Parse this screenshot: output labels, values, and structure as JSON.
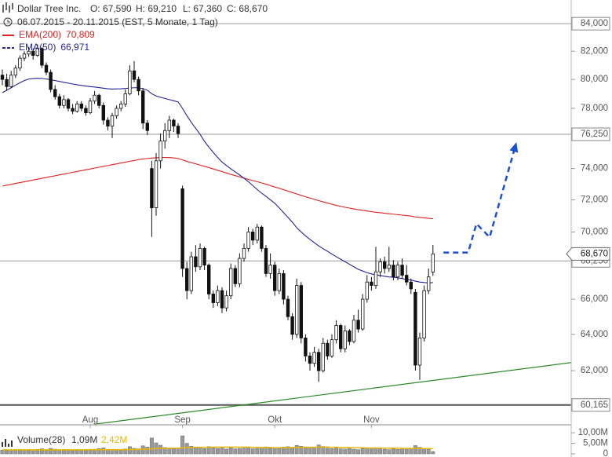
{
  "chart_data": {
    "type": "candlestick",
    "title": "Dollar Tree Inc.",
    "header": {
      "open": "O: 67,590",
      "high": "H: 69,210",
      "low": "L: 67,360",
      "close": "C: 68,670"
    },
    "subtitle": "06.07.2015 - 20.11.2015 (EST, 5 Monate, 1 Tag)",
    "categories": [
      null,
      null,
      null,
      null,
      null,
      null,
      null,
      null,
      null,
      null,
      null,
      null,
      null,
      null,
      null,
      null,
      null,
      null,
      null,
      null,
      "Aug",
      null,
      null,
      null,
      null,
      null,
      null,
      null,
      null,
      null,
      null,
      null,
      null,
      null,
      null,
      null,
      null,
      null,
      null,
      null,
      null,
      "Sep",
      null,
      null,
      null,
      null,
      null,
      null,
      null,
      null,
      null,
      null,
      null,
      null,
      null,
      null,
      null,
      null,
      null,
      null,
      null,
      null,
      "Okt",
      null,
      null,
      null,
      null,
      null,
      null,
      null,
      null,
      null,
      null,
      null,
      null,
      null,
      null,
      null,
      null,
      null,
      null,
      null,
      null,
      null,
      "Nov",
      null,
      null,
      null,
      null,
      null,
      null,
      null,
      null,
      null,
      null,
      null,
      null,
      null,
      null
    ],
    "candles": [
      [
        80300,
        80700,
        79600,
        80000
      ],
      [
        80000,
        80400,
        79200,
        79500
      ],
      [
        79500,
        80600,
        79400,
        80300
      ],
      [
        80300,
        81000,
        80100,
        80800
      ],
      [
        80800,
        81700,
        80600,
        81500
      ],
      [
        81500,
        82000,
        81300,
        81800
      ],
      [
        81800,
        82300,
        81600,
        82000
      ],
      [
        82000,
        82200,
        81400,
        81700
      ],
      [
        81700,
        82500,
        81600,
        82200
      ],
      [
        82200,
        82300,
        80800,
        81000
      ],
      [
        81000,
        81200,
        80300,
        80500
      ],
      [
        80500,
        80700,
        79100,
        79300
      ],
      [
        79300,
        79600,
        78600,
        78800
      ],
      [
        78800,
        79000,
        78000,
        78200
      ],
      [
        78200,
        78900,
        78000,
        78600
      ],
      [
        78600,
        78700,
        77800,
        78000
      ],
      [
        78000,
        78300,
        77600,
        77800
      ],
      [
        77800,
        78500,
        77700,
        78300
      ],
      [
        78300,
        78500,
        77800,
        78000
      ],
      [
        78000,
        78200,
        77500,
        77700
      ],
      [
        77700,
        78700,
        77600,
        78500
      ],
      [
        78500,
        79200,
        78300,
        78900
      ],
      [
        78900,
        79000,
        78000,
        78200
      ],
      [
        78200,
        78400,
        76900,
        77200
      ],
      [
        77200,
        77400,
        76500,
        76800
      ],
      [
        76800,
        77700,
        76000,
        77500
      ],
      [
        77500,
        78200,
        77300,
        78000
      ],
      [
        78000,
        78500,
        77800,
        78300
      ],
      [
        78300,
        79300,
        78100,
        79000
      ],
      [
        79000,
        81000,
        78900,
        80600
      ],
      [
        80600,
        81300,
        79800,
        80000
      ],
      [
        80000,
        80200,
        78900,
        79200
      ],
      [
        79200,
        79400,
        76600,
        77000
      ],
      [
        77000,
        77200,
        76200,
        76500
      ],
      [
        74000,
        74500,
        69700,
        71500
      ],
      [
        71500,
        75000,
        71000,
        74500
      ],
      [
        74500,
        76300,
        74000,
        75800
      ],
      [
        75800,
        77000,
        75300,
        76500
      ],
      [
        76500,
        77500,
        76000,
        77200
      ],
      [
        77200,
        77300,
        76400,
        76800
      ],
      [
        76800,
        77000,
        76000,
        76300
      ],
      [
        72700,
        72900,
        67300,
        67800
      ],
      [
        67800,
        68200,
        66000,
        66500
      ],
      [
        66500,
        68800,
        66300,
        68500
      ],
      [
        68500,
        69200,
        67600,
        67900
      ],
      [
        67900,
        69300,
        67700,
        69000
      ],
      [
        69000,
        69100,
        67700,
        68000
      ],
      [
        68000,
        68100,
        66000,
        66300
      ],
      [
        66300,
        66500,
        65500,
        65800
      ],
      [
        65800,
        66800,
        65600,
        66500
      ],
      [
        66500,
        66700,
        65200,
        65500
      ],
      [
        65500,
        66500,
        65300,
        66200
      ],
      [
        66200,
        68100,
        66000,
        67800
      ],
      [
        67800,
        68000,
        66700,
        66900
      ],
      [
        66900,
        68700,
        66700,
        68400
      ],
      [
        68400,
        69300,
        68200,
        69000
      ],
      [
        69000,
        70300,
        68800,
        70000
      ],
      [
        70000,
        70200,
        69200,
        69500
      ],
      [
        69500,
        70500,
        69300,
        70300
      ],
      [
        70300,
        70400,
        68800,
        69000
      ],
      [
        69000,
        69200,
        67300,
        67500
      ],
      [
        67500,
        68700,
        67200,
        68000
      ],
      [
        68000,
        68200,
        66200,
        66500
      ],
      [
        66500,
        67800,
        66300,
        67500
      ],
      [
        67500,
        67700,
        65700,
        66000
      ],
      [
        66000,
        66200,
        64800,
        65000
      ],
      [
        65000,
        65200,
        63700,
        64000
      ],
      [
        64000,
        67200,
        63800,
        66800
      ],
      [
        66800,
        67000,
        63500,
        63800
      ],
      [
        63800,
        64000,
        62500,
        62800
      ],
      [
        62800,
        63000,
        62000,
        62400
      ],
      [
        62400,
        63300,
        62200,
        63000
      ],
      [
        63000,
        63200,
        61400,
        62000
      ],
      [
        62000,
        63800,
        61900,
        63500
      ],
      [
        63500,
        63700,
        62600,
        62800
      ],
      [
        62800,
        64000,
        62700,
        63700
      ],
      [
        63700,
        64800,
        63500,
        64500
      ],
      [
        64500,
        64600,
        63000,
        63200
      ],
      [
        63200,
        64500,
        63000,
        64200
      ],
      [
        64200,
        64300,
        63400,
        63600
      ],
      [
        63600,
        65100,
        63500,
        64800
      ],
      [
        64800,
        65400,
        64100,
        64300
      ],
      [
        64300,
        66300,
        64200,
        66000
      ],
      [
        66000,
        67400,
        65800,
        67000
      ],
      [
        67000,
        67300,
        66500,
        66800
      ],
      [
        66800,
        69100,
        66600,
        67600
      ],
      [
        67600,
        68400,
        67300,
        68200
      ],
      [
        68200,
        68500,
        67500,
        67800
      ],
      [
        67800,
        69100,
        67600,
        68000
      ],
      [
        68000,
        68300,
        67100,
        67300
      ],
      [
        67300,
        68200,
        67100,
        68000
      ],
      [
        68000,
        68400,
        67200,
        67400
      ],
      [
        67400,
        68000,
        66800,
        67000
      ],
      [
        67000,
        67200,
        66300,
        66600
      ],
      [
        66400,
        66600,
        62000,
        62300
      ],
      [
        62300,
        64100,
        61500,
        63800
      ],
      [
        63800,
        66800,
        63600,
        66500
      ],
      [
        66500,
        67800,
        66300,
        67300
      ],
      [
        67590,
        69210,
        67360,
        68670
      ]
    ],
    "yscale": "log",
    "ylim": [
      59170,
      85760
    ],
    "yticks": [
      {
        "value": 62000,
        "label": "62,000"
      },
      {
        "value": 64000,
        "label": "64,000"
      },
      {
        "value": 66000,
        "label": "66,000"
      },
      {
        "value": 70000,
        "label": "70,000"
      },
      {
        "value": 72000,
        "label": "72,000"
      },
      {
        "value": 74000,
        "label": "74,000"
      },
      {
        "value": 78000,
        "label": "78,000"
      },
      {
        "value": 80000,
        "label": "80,000"
      },
      {
        "value": 82000,
        "label": "82,000"
      }
    ],
    "levels": [
      {
        "value": 84000,
        "label": "84,000"
      },
      {
        "value": 76250,
        "label": "76,250"
      },
      {
        "value": 68250,
        "label": "68,250"
      },
      {
        "value": 60165,
        "label": "60,165"
      }
    ],
    "last_price": {
      "value": 68670,
      "label": "68,670"
    },
    "series": [
      {
        "name": "EMA(200)",
        "color": "#e02020",
        "last_label": "70,809",
        "values": [
          72870,
          72930,
          72980,
          73040,
          73090,
          73150,
          73200,
          73260,
          73310,
          73370,
          73420,
          73480,
          73530,
          73590,
          73640,
          73700,
          73750,
          73810,
          73860,
          73920,
          73970,
          74030,
          74080,
          74140,
          74190,
          74250,
          74300,
          74360,
          74410,
          74470,
          74520,
          74580,
          74620,
          74650,
          74680,
          74700,
          74710,
          74720,
          74710,
          74690,
          74650,
          74560,
          74460,
          74380,
          74300,
          74220,
          74140,
          74060,
          73970,
          73880,
          73800,
          73710,
          73620,
          73540,
          73460,
          73380,
          73300,
          73220,
          73150,
          73070,
          72990,
          72900,
          72810,
          72730,
          72640,
          72550,
          72460,
          72370,
          72280,
          72190,
          72110,
          72030,
          71950,
          71870,
          71790,
          71720,
          71650,
          71590,
          71530,
          71480,
          71430,
          71380,
          71340,
          71300,
          71260,
          71220,
          71190,
          71160,
          71130,
          71100,
          71070,
          71040,
          71010,
          70980,
          70930,
          70900,
          70870,
          70840,
          70809
        ]
      },
      {
        "name": "EMA(50)",
        "color": "#22229a",
        "last_label": "66,971",
        "values": [
          79080,
          79250,
          79420,
          79600,
          79770,
          79920,
          80030,
          80060,
          80080,
          80070,
          80030,
          79980,
          79920,
          79860,
          79800,
          79740,
          79680,
          79630,
          79580,
          79540,
          79500,
          79470,
          79430,
          79390,
          79350,
          79330,
          79340,
          79350,
          79370,
          79400,
          79420,
          79420,
          79350,
          79250,
          79000,
          78850,
          78760,
          78680,
          78600,
          78520,
          78440,
          78000,
          77500,
          77050,
          76650,
          76250,
          75780,
          75400,
          75050,
          74720,
          74420,
          74190,
          73980,
          73780,
          73580,
          73370,
          73150,
          72900,
          72650,
          72420,
          72220,
          72000,
          71780,
          71500,
          71200,
          70900,
          70600,
          70260,
          70000,
          69760,
          69550,
          69350,
          69150,
          68980,
          68830,
          68660,
          68500,
          68350,
          68200,
          68050,
          67900,
          67750,
          67650,
          67550,
          67480,
          67420,
          67380,
          67340,
          67300,
          67280,
          67250,
          67200,
          67150,
          67120,
          67050,
          67000,
          66970,
          66950,
          66971
        ]
      }
    ],
    "trendline": {
      "color": "#2a8a2a",
      "x": [
        10.2,
        138.8
      ],
      "values": [
        58845,
        62730
      ]
    },
    "projection": {
      "color": "#1a4fd6",
      "x": [
        100.4,
        106,
        107.9,
        110.9,
        116.8
      ],
      "values": [
        68750,
        68750,
        70510,
        69680,
        75520
      ]
    },
    "volume": {
      "title": "Volume(28)",
      "last_label": "1,09M",
      "ma_label": "2,42M",
      "color": "#9a9a9a",
      "ma_color": "#e8b800",
      "ylim": [
        0,
        13
      ],
      "yticks": [
        0,
        {
          "value": 5,
          "label": "5,00M"
        },
        {
          "value": 10,
          "label": "10,00M"
        }
      ],
      "values": [
        1.8,
        1.6,
        1.5,
        1.7,
        2.0,
        1.9,
        1.6,
        1.5,
        2.1,
        2.4,
        2.0,
        2.6,
        2.2,
        1.9,
        1.7,
        1.8,
        1.5,
        1.6,
        1.9,
        2.0,
        1.8,
        2.2,
        2.5,
        2.8,
        2.1,
        1.9,
        2.0,
        1.7,
        2.3,
        3.4,
        2.6,
        2.4,
        3.8,
        3.2,
        7.5,
        5.2,
        4.1,
        3.0,
        2.6,
        2.4,
        2.8,
        8.5,
        5.0,
        3.6,
        3.2,
        2.9,
        2.5,
        3.4,
        3.0,
        2.6,
        2.8,
        2.3,
        2.9,
        2.4,
        2.6,
        2.7,
        3.1,
        2.4,
        2.6,
        2.9,
        3.3,
        2.7,
        3.0,
        2.6,
        3.2,
        3.4,
        3.1,
        4.0,
        3.6,
        3.3,
        2.9,
        3.2,
        4.2,
        3.5,
        2.7,
        2.5,
        2.8,
        2.4,
        2.3,
        2.6,
        2.2,
        2.0,
        2.5,
        2.9,
        2.3,
        2.7,
        2.4,
        2.2,
        2.0,
        2.3,
        2.1,
        2.6,
        2.2,
        2.4,
        3.9,
        3.1,
        2.7,
        2.3,
        1.09
      ],
      "ma_values": [
        1.9,
        1.9,
        1.9,
        1.9,
        1.9,
        1.9,
        1.9,
        1.9,
        1.9,
        1.9,
        1.9,
        1.9,
        1.9,
        1.9,
        1.9,
        1.9,
        1.9,
        1.9,
        1.9,
        1.9,
        2.0,
        2.0,
        2.0,
        2.0,
        2.0,
        2.0,
        2.0,
        2.0,
        2.0,
        2.1,
        2.1,
        2.1,
        2.2,
        2.2,
        2.4,
        2.5,
        2.6,
        2.6,
        2.7,
        2.7,
        2.7,
        2.9,
        3.0,
        3.0,
        3.1,
        3.1,
        3.1,
        3.1,
        3.2,
        3.2,
        3.2,
        3.2,
        3.2,
        3.2,
        3.2,
        3.2,
        3.2,
        3.1,
        3.1,
        3.0,
        3.0,
        3.0,
        2.9,
        2.9,
        2.9,
        3.0,
        3.0,
        3.0,
        3.1,
        3.1,
        3.1,
        3.1,
        3.2,
        3.2,
        3.2,
        3.1,
        3.1,
        3.0,
        3.0,
        3.0,
        2.9,
        2.9,
        2.9,
        2.8,
        2.8,
        2.8,
        2.8,
        2.7,
        2.7,
        2.7,
        2.7,
        2.6,
        2.6,
        2.6,
        2.6,
        2.5,
        2.5,
        2.5,
        2.42
      ]
    }
  }
}
